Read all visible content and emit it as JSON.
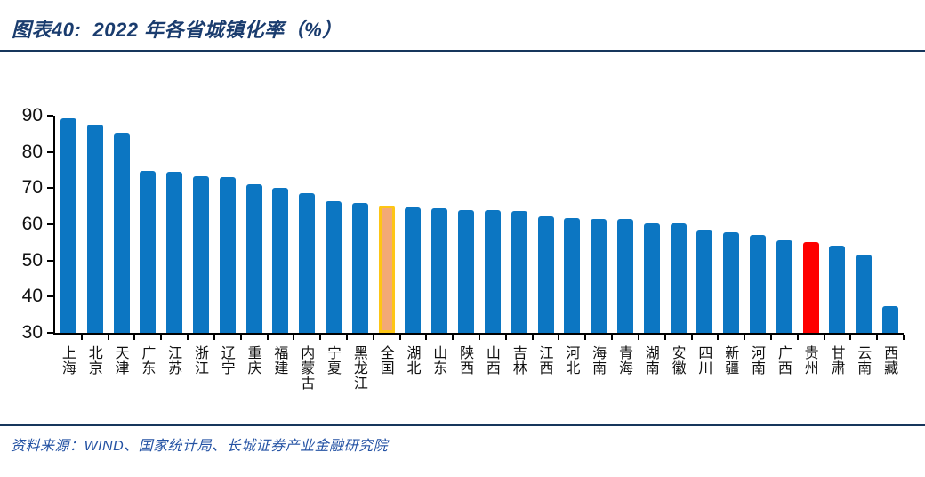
{
  "header": {
    "title": "图表40:  2022 年各省城镇化率（%）"
  },
  "footer": {
    "source": "资料来源：WIND、国家统计局、长城证券产业金融研究院"
  },
  "colors": {
    "title_text": "#1A3C6E",
    "rule": "#16365C",
    "footer_text": "#2553A4",
    "bar_blue": "#0C76C2",
    "national_fill": "#F3A976",
    "national_border": "#FDC515",
    "highlight_red": "#FE0000",
    "axis": "#000000"
  },
  "chart_data": {
    "type": "bar",
    "title": "2022 年各省城镇化率（%）",
    "xlabel": "",
    "ylabel": "",
    "ylim": [
      30,
      90
    ],
    "yticks": [
      30,
      40,
      50,
      60,
      70,
      80,
      90
    ],
    "grid": false,
    "legend": null,
    "categories": [
      "上海",
      "北京",
      "天津",
      "广东",
      "江苏",
      "浙江",
      "辽宁",
      "重庆",
      "福建",
      "内蒙古",
      "宁夏",
      "黑龙江",
      "全国",
      "湖北",
      "山东",
      "陕西",
      "山西",
      "吉林",
      "江西",
      "河北",
      "海南",
      "青海",
      "湖南",
      "安徽",
      "四川",
      "新疆",
      "河南",
      "广西",
      "贵州",
      "甘肃",
      "云南",
      "西藏"
    ],
    "values": [
      89.3,
      87.6,
      85.1,
      74.8,
      74.4,
      73.4,
      73.0,
      71.0,
      70.1,
      68.6,
      66.3,
      66.0,
      65.2,
      64.7,
      64.5,
      64.0,
      63.9,
      63.8,
      62.1,
      61.7,
      61.5,
      61.4,
      60.3,
      60.2,
      58.4,
      57.9,
      57.1,
      55.7,
      55.1,
      54.2,
      51.7,
      37.4
    ],
    "bar_color": "#0C76C2",
    "highlighted_bars": [
      {
        "category": "全国",
        "fill": "#F3A976",
        "border": "#FDC515"
      },
      {
        "category": "贵州",
        "fill": "#FE0000",
        "border": ""
      }
    ]
  }
}
